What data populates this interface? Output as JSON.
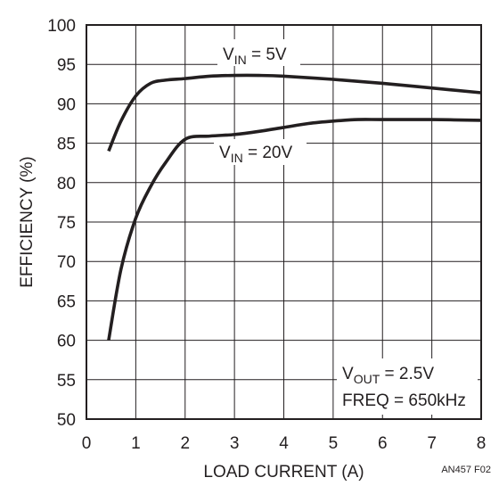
{
  "chart_data": {
    "type": "line",
    "xlabel": "LOAD CURRENT (A)",
    "ylabel": "EFFICIENCY (%)",
    "xlim": [
      0,
      8
    ],
    "ylim": [
      50,
      100
    ],
    "xticks": [
      0,
      1,
      2,
      3,
      4,
      5,
      6,
      7,
      8
    ],
    "yticks": [
      50,
      55,
      60,
      65,
      70,
      75,
      80,
      85,
      90,
      95,
      100
    ],
    "grid": true,
    "series": [
      {
        "name": "VIN = 5V",
        "x": [
          0.45,
          0.7,
          1.0,
          1.3,
          1.6,
          2.0,
          2.5,
          3.0,
          3.5,
          4.0,
          5.0,
          6.0,
          7.0,
          8.0
        ],
        "y": [
          84.0,
          87.8,
          91.0,
          92.6,
          93.0,
          93.2,
          93.5,
          93.6,
          93.6,
          93.5,
          93.1,
          92.6,
          92.0,
          91.4
        ]
      },
      {
        "name": "VIN = 20V",
        "x": [
          0.45,
          0.7,
          1.0,
          1.3,
          1.6,
          2.0,
          2.5,
          3.0,
          3.5,
          4.0,
          4.5,
          5.0,
          5.5,
          6.0,
          7.0,
          8.0
        ],
        "y": [
          60.0,
          69.0,
          75.5,
          79.5,
          82.5,
          85.5,
          85.9,
          86.1,
          86.5,
          87.0,
          87.5,
          87.8,
          88.0,
          88.0,
          88.0,
          87.9
        ]
      }
    ],
    "annotations": {
      "series_labels": [
        {
          "main": "V",
          "sub": "IN",
          "rest": " = 5V"
        },
        {
          "main": "V",
          "sub": "IN",
          "rest": " = 20V"
        }
      ],
      "conditions": [
        {
          "main": "V",
          "sub": "OUT",
          "rest": " = 2.5V"
        },
        {
          "main": "FREQ = 650kHz",
          "sub": "",
          "rest": ""
        }
      ],
      "figure_id": "AN457 F02"
    }
  }
}
